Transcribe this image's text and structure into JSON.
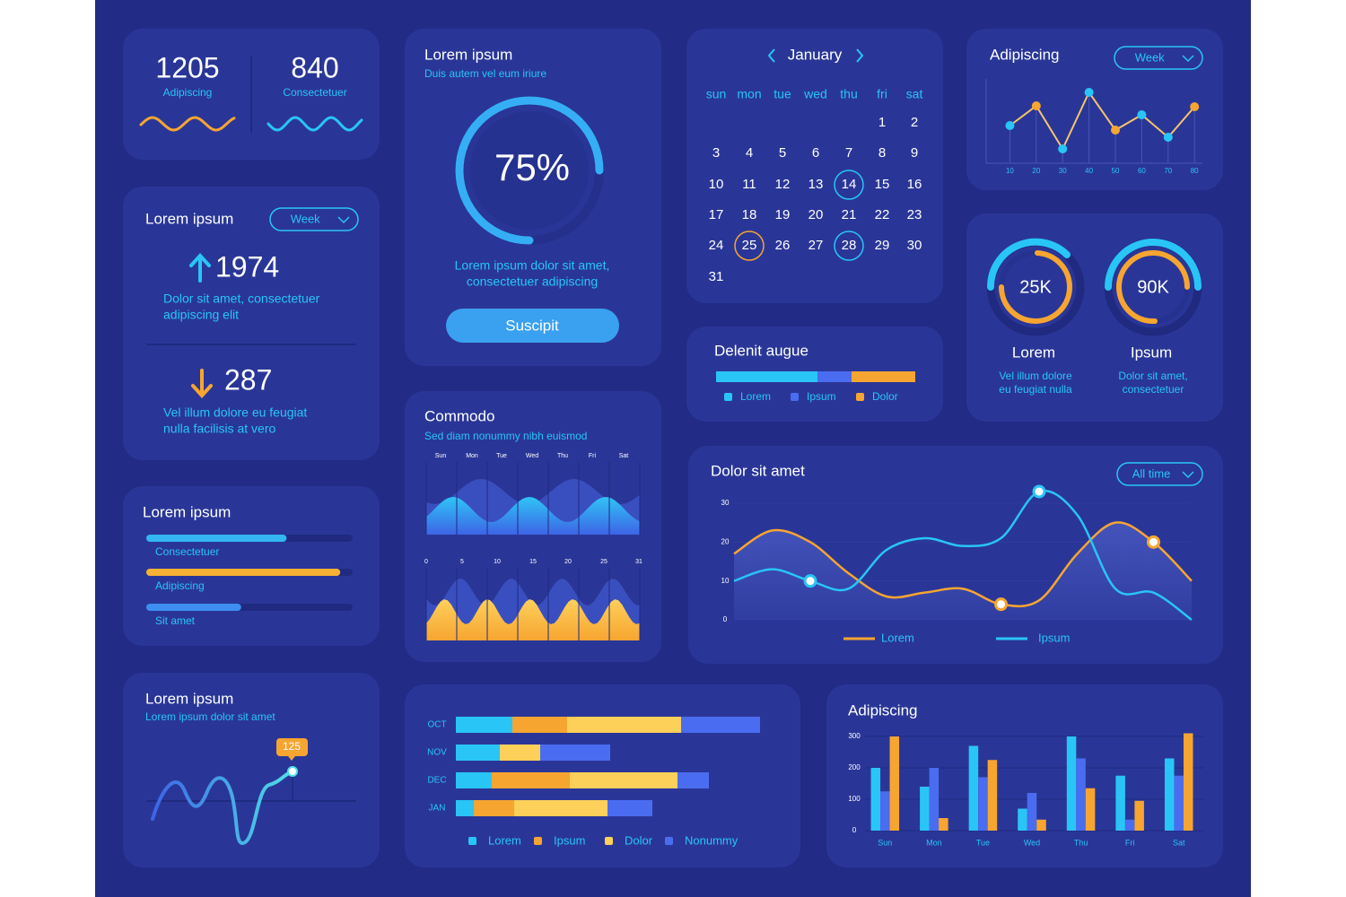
{
  "stats": [
    {
      "value": "1205",
      "label": "Adipiscing"
    },
    {
      "value": "840",
      "label": "Consectetuer"
    }
  ],
  "gauge": {
    "title": "Lorem ipsum",
    "subtitle": "Duis autem vel eum iriure",
    "chart_data": {
      "type": "gauge",
      "values": [
        75
      ],
      "value_labels": [
        "75%"
      ],
      "ylim": [
        0,
        100
      ],
      "color": "#35aef5"
    },
    "text": [
      "Lorem ipsum dolor sit amet,",
      "consectetuer adipiscing"
    ],
    "button": "Suscipit"
  },
  "calendar": {
    "month": "January",
    "weekdays": [
      "sun",
      "mon",
      "tue",
      "wed",
      "thu",
      "fri",
      "sat"
    ],
    "days": [
      1,
      2,
      3,
      4,
      5,
      6,
      7,
      8,
      9,
      10,
      11,
      12,
      13,
      14,
      15,
      16,
      17,
      18,
      19,
      20,
      21,
      22,
      23,
      24,
      25,
      26,
      27,
      28,
      29,
      30,
      31
    ],
    "first_weekday": 5,
    "highlighted": [
      14,
      28
    ],
    "selected": [
      25
    ]
  },
  "mini_line": {
    "title": "Adipiscing",
    "dropdown": "Week",
    "chart_data": {
      "type": "line",
      "x": [
        10,
        20,
        30,
        40,
        50,
        60,
        70,
        80
      ],
      "values": [
        42,
        64,
        16,
        79,
        37,
        54,
        29,
        63
      ],
      "xlim": [
        1,
        83
      ],
      "xticks": [
        10,
        20,
        30,
        40,
        50,
        60,
        70,
        80
      ],
      "color": "#f4c56a",
      "point_colors": [
        "#29c5f6",
        "#f7a531",
        "#29c5f6",
        "#29c5f6",
        "#f7a531",
        "#29c5f6",
        "#29c5f6",
        "#f7a531"
      ]
    }
  },
  "week_card": {
    "title": "Lorem ipsum",
    "dropdown": "Week",
    "up": {
      "value": "1974",
      "text": [
        "Dolor  sit  amet,  consectetuer",
        "adipiscing elit"
      ]
    },
    "down": {
      "value": "287",
      "text": [
        "Vel  illum  dolore  eu  feugiat",
        "nulla facilisis at vero"
      ]
    }
  },
  "delenit": {
    "title": "Delenit augue",
    "chart_data": {
      "type": "stacked-bar",
      "series": [
        {
          "name": "Lorem",
          "color": "#29c5f6",
          "values": [
            51
          ]
        },
        {
          "name": "Ipsum",
          "color": "#4a6cf0",
          "values": [
            17
          ]
        },
        {
          "name": "Dolor",
          "color": "#f7a531",
          "values": [
            32
          ]
        }
      ]
    }
  },
  "rings": [
    {
      "value": "25K",
      "label": "Lorem",
      "text": [
        "Vel illum dolore",
        "eu feugiat nulla"
      ]
    },
    {
      "value": "90K",
      "label": "Ipsum",
      "text": [
        "Dolor sit amet,",
        "consectetuer"
      ]
    }
  ],
  "commodo": {
    "title": "Commodo",
    "subtitle": "Sed diam nonummy nibh euismod",
    "days": [
      "Sun",
      "Mon",
      "Tue",
      "Wed",
      "Thu",
      "Fri",
      "Sat"
    ],
    "dates": [
      "0",
      "5",
      "10",
      "15",
      "20",
      "25",
      "31"
    ]
  },
  "progress": {
    "title": "Lorem ipsum",
    "chart_data": {
      "type": "progress",
      "categories": [
        "Consectetuer",
        "Adipiscing",
        "Sit amet"
      ],
      "values": [
        68,
        94,
        46
      ],
      "colors": [
        "#33b6f2",
        "#f7b135",
        "#3e8ef2"
      ]
    }
  },
  "dolor": {
    "title": "Dolor sit amet",
    "dropdown": "All time",
    "chart_data": {
      "type": "line",
      "ylim": [
        0,
        30
      ],
      "yticks": [
        0,
        10,
        20,
        30
      ],
      "series": [
        {
          "name": "Lorem",
          "color": "#f7a531",
          "values": [
            17,
            23,
            20,
            12,
            6,
            7,
            8,
            4,
            5,
            17,
            25,
            20,
            10
          ],
          "highlighted": [
            7,
            11
          ]
        },
        {
          "name": "Ipsum",
          "color": "#29c5f6",
          "values": [
            10,
            13,
            10,
            8,
            18,
            21,
            19,
            21,
            33,
            27,
            8,
            7,
            0
          ],
          "highlighted": [
            2,
            8
          ]
        }
      ]
    }
  },
  "spark": {
    "title": "Lorem ipsum",
    "subtitle": "Lorem ipsum dolor sit amet",
    "badge": "125"
  },
  "hbar": {
    "chart_data": {
      "type": "hbar-stacked",
      "categories": [
        "OCT",
        "NOV",
        "DEC",
        "JAN"
      ],
      "series": [
        {
          "name": "Lorem",
          "color": "#29c5f6",
          "values": [
            63,
            49,
            40,
            20
          ]
        },
        {
          "name": "Ipsum",
          "color": "#f7a531",
          "values": [
            61,
            0,
            87,
            45
          ]
        },
        {
          "name": "Dolor",
          "color": "#fdd05a",
          "values": [
            127,
            45,
            120,
            104
          ]
        },
        {
          "name": "Nonummy",
          "color": "#4a6cf0",
          "values": [
            88,
            78,
            35,
            50
          ]
        }
      ]
    }
  },
  "adip_bars": {
    "title": "Adipiscing",
    "chart_data": {
      "type": "bar",
      "categories": [
        "Sun",
        "Mon",
        "Tue",
        "Wed",
        "Thu",
        "Fri",
        "Sat"
      ],
      "ylim": [
        0,
        300
      ],
      "yticks": [
        0,
        100,
        200,
        300
      ],
      "grid": true,
      "series": [
        {
          "color": "#29c5f6",
          "values": [
            200,
            140,
            270,
            70,
            300,
            175,
            230
          ]
        },
        {
          "color": "#4a6cf0",
          "values": [
            125,
            200,
            170,
            120,
            230,
            35,
            175
          ]
        },
        {
          "color": "#f7a531",
          "values": [
            300,
            40,
            225,
            35,
            135,
            95,
            310
          ]
        }
      ]
    }
  }
}
